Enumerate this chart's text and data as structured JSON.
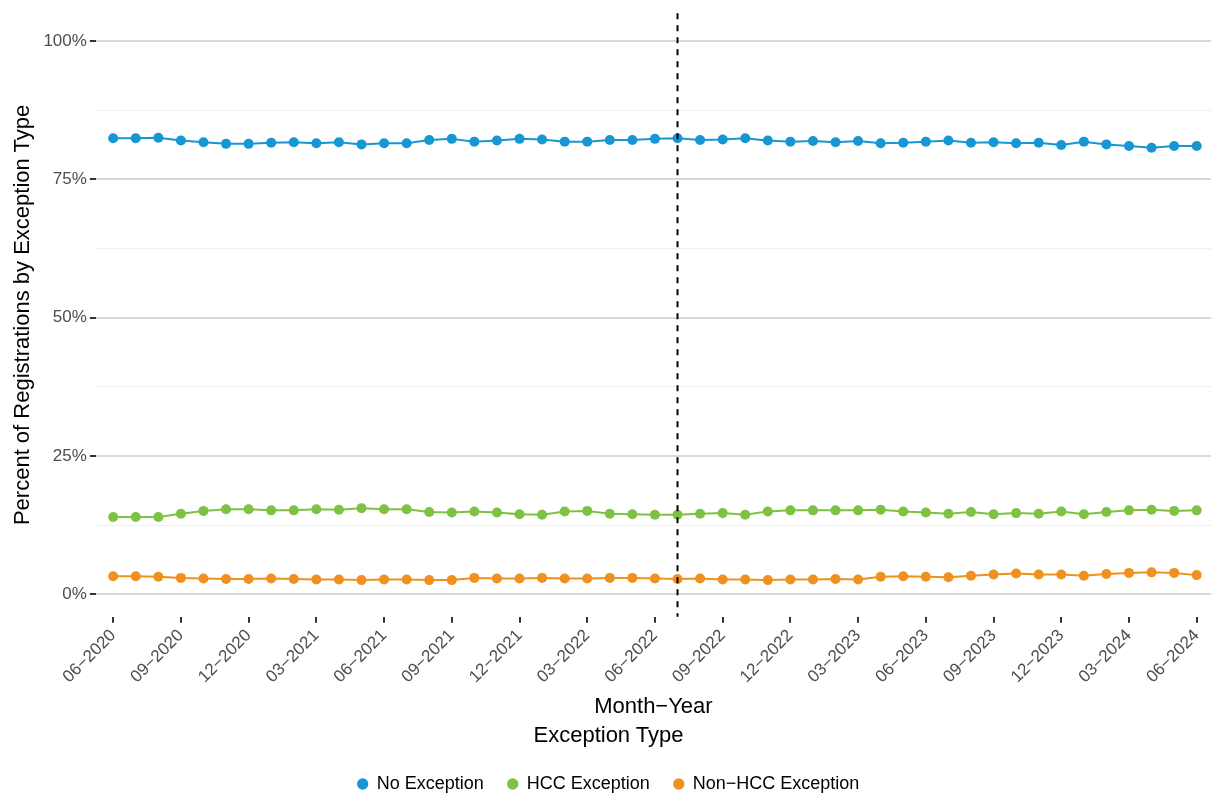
{
  "chart_data": {
    "type": "line",
    "xlabel": "Month−Year",
    "ylabel": "Percent of Registrations by Exception Type",
    "legend_title": "Exception Type",
    "legend": "bottom",
    "grid": "y",
    "marker": "circle",
    "line_style": "solid",
    "x": [
      "2020-06",
      "2020-07",
      "2020-08",
      "2020-09",
      "2020-10",
      "2020-11",
      "2020-12",
      "2021-01",
      "2021-02",
      "2021-03",
      "2021-04",
      "2021-05",
      "2021-06",
      "2021-07",
      "2021-08",
      "2021-09",
      "2021-10",
      "2021-11",
      "2021-12",
      "2022-01",
      "2022-02",
      "2022-03",
      "2022-04",
      "2022-05",
      "2022-06",
      "2022-07",
      "2022-08",
      "2022-09",
      "2022-10",
      "2022-11",
      "2022-12",
      "2023-01",
      "2023-02",
      "2023-03",
      "2023-04",
      "2023-05",
      "2023-06",
      "2023-07",
      "2023-08",
      "2023-09",
      "2023-10",
      "2023-11",
      "2023-12",
      "2024-01",
      "2024-02",
      "2024-03",
      "2024-04",
      "2024-05",
      "2024-06"
    ],
    "xlim": [
      "2020-05-08",
      "2024-06-20"
    ],
    "xticks": [
      {
        "value": "2020-06",
        "label": "06−2020"
      },
      {
        "value": "2020-09",
        "label": "09−2020"
      },
      {
        "value": "2020-12",
        "label": "12−2020"
      },
      {
        "value": "2021-03",
        "label": "03−2021"
      },
      {
        "value": "2021-06",
        "label": "06−2021"
      },
      {
        "value": "2021-09",
        "label": "09−2021"
      },
      {
        "value": "2021-12",
        "label": "12−2021"
      },
      {
        "value": "2022-03",
        "label": "03−2022"
      },
      {
        "value": "2022-06",
        "label": "06−2022"
      },
      {
        "value": "2022-09",
        "label": "09−2022"
      },
      {
        "value": "2022-12",
        "label": "12−2022"
      },
      {
        "value": "2023-03",
        "label": "03−2023"
      },
      {
        "value": "2023-06",
        "label": "06−2023"
      },
      {
        "value": "2023-09",
        "label": "09−2023"
      },
      {
        "value": "2023-12",
        "label": "12−2023"
      },
      {
        "value": "2024-03",
        "label": "03−2024"
      },
      {
        "value": "2024-06",
        "label": "06−2024"
      }
    ],
    "ylim": [
      -4,
      105
    ],
    "yticks": [
      {
        "value": 0,
        "label": "0%"
      },
      {
        "value": 12.5,
        "label": null
      },
      {
        "value": 25,
        "label": "25%"
      },
      {
        "value": 37.5,
        "label": null
      },
      {
        "value": 50,
        "label": "50%"
      },
      {
        "value": 62.5,
        "label": null
      },
      {
        "value": 75,
        "label": "75%"
      },
      {
        "value": 87.5,
        "label": null
      },
      {
        "value": 100,
        "label": "100%"
      }
    ],
    "ref_lines": [
      {
        "axis": "x",
        "value": "2022-07",
        "color": "#000000",
        "line_style": "dashed"
      }
    ],
    "series": [
      {
        "name": "No Exception",
        "color": "#1696d2",
        "values": [
          82.4,
          82.4,
          82.5,
          82.0,
          81.7,
          81.4,
          81.4,
          81.6,
          81.7,
          81.5,
          81.7,
          81.3,
          81.5,
          81.5,
          82.1,
          82.3,
          81.8,
          82.0,
          82.3,
          82.2,
          81.8,
          81.8,
          82.1,
          82.1,
          82.3,
          82.4,
          82.1,
          82.2,
          82.4,
          82.0,
          81.8,
          81.9,
          81.7,
          81.9,
          81.5,
          81.6,
          81.8,
          82.0,
          81.6,
          81.7,
          81.5,
          81.6,
          81.2,
          81.8,
          81.3,
          81.0,
          80.7,
          81.0,
          81.0
        ]
      },
      {
        "name": "HCC Exception",
        "color": "#7dc243",
        "values": [
          14.0,
          14.0,
          14.0,
          14.6,
          15.1,
          15.4,
          15.4,
          15.2,
          15.2,
          15.4,
          15.3,
          15.6,
          15.4,
          15.4,
          14.9,
          14.8,
          15.0,
          14.8,
          14.5,
          14.4,
          15.0,
          15.1,
          14.6,
          14.5,
          14.4,
          14.4,
          14.6,
          14.7,
          14.4,
          15.0,
          15.2,
          15.2,
          15.2,
          15.2,
          15.3,
          15.0,
          14.8,
          14.6,
          14.9,
          14.5,
          14.7,
          14.6,
          15.0,
          14.5,
          14.9,
          15.2,
          15.3,
          15.1,
          15.2
        ]
      },
      {
        "name": "Non−HCC Exception",
        "color": "#f0901e",
        "values": [
          3.3,
          3.3,
          3.2,
          3.0,
          2.9,
          2.8,
          2.8,
          2.9,
          2.8,
          2.7,
          2.7,
          2.6,
          2.7,
          2.7,
          2.6,
          2.6,
          3.0,
          2.9,
          2.9,
          3.0,
          2.9,
          2.9,
          3.0,
          3.0,
          2.9,
          2.8,
          2.9,
          2.7,
          2.7,
          2.6,
          2.7,
          2.7,
          2.8,
          2.7,
          3.2,
          3.3,
          3.2,
          3.1,
          3.4,
          3.6,
          3.8,
          3.6,
          3.6,
          3.4,
          3.7,
          3.9,
          4.0,
          3.9,
          3.5
        ]
      }
    ]
  }
}
